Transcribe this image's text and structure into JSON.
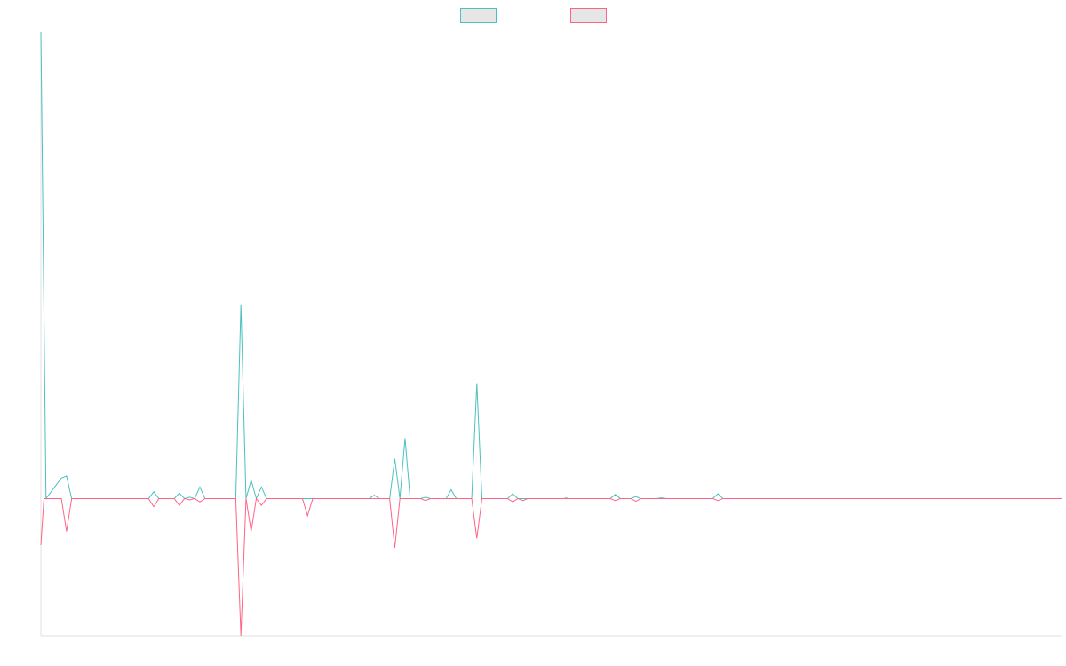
{
  "chart_data": {
    "type": "line",
    "title": "",
    "xlabel": "",
    "ylabel": "",
    "grid": false,
    "legend": {
      "placement": "top-center",
      "entries": [
        {
          "label": "",
          "color": "#4bc0c0"
        },
        {
          "label": "",
          "color": "#ff6384"
        }
      ]
    },
    "x_count": 200,
    "ylim": [
      -200,
      680
    ],
    "series": [
      {
        "color": "#4bc0c0",
        "fill": "#e6e6e6",
        "points": [
          [
            0,
            680
          ],
          [
            1,
            0
          ],
          [
            4,
            30
          ],
          [
            5,
            33
          ],
          [
            6,
            0
          ],
          [
            21,
            0
          ],
          [
            22,
            10
          ],
          [
            23,
            0
          ],
          [
            26,
            0
          ],
          [
            27,
            8
          ],
          [
            28,
            0
          ],
          [
            29,
            2
          ],
          [
            30,
            0
          ],
          [
            31,
            17
          ],
          [
            32,
            0
          ],
          [
            38,
            0
          ],
          [
            39,
            283
          ],
          [
            40,
            0
          ],
          [
            41,
            27
          ],
          [
            42,
            0
          ],
          [
            43,
            17
          ],
          [
            44,
            0
          ],
          [
            64,
            0
          ],
          [
            65,
            5
          ],
          [
            66,
            0
          ],
          [
            68,
            0
          ],
          [
            69,
            58
          ],
          [
            70,
            0
          ],
          [
            71,
            88
          ],
          [
            72,
            0
          ],
          [
            74,
            0
          ],
          [
            75,
            2
          ],
          [
            76,
            0
          ],
          [
            79,
            0
          ],
          [
            80,
            13
          ],
          [
            81,
            0
          ],
          [
            84,
            0
          ],
          [
            85,
            168
          ],
          [
            86,
            0
          ],
          [
            91,
            0
          ],
          [
            92,
            7
          ],
          [
            93,
            0
          ],
          [
            94,
            0
          ],
          [
            102,
            0
          ],
          [
            102.4,
            1
          ],
          [
            102.8,
            0
          ],
          [
            111,
            0
          ],
          [
            112,
            6
          ],
          [
            113,
            0
          ],
          [
            115,
            0
          ],
          [
            116,
            3
          ],
          [
            117,
            0
          ],
          [
            120,
            0
          ],
          [
            121,
            1
          ],
          [
            122,
            0
          ],
          [
            131,
            0
          ],
          [
            132,
            7
          ],
          [
            133,
            0
          ],
          [
            199,
            0
          ]
        ]
      },
      {
        "color": "#ff6384",
        "fill": "#e6e6e6",
        "points": [
          [
            0,
            -68
          ],
          [
            0.6,
            0
          ],
          [
            4,
            0
          ],
          [
            5,
            -48
          ],
          [
            6,
            0
          ],
          [
            21,
            0
          ],
          [
            22,
            -12
          ],
          [
            23,
            0
          ],
          [
            26,
            0
          ],
          [
            27,
            -10
          ],
          [
            28,
            0
          ],
          [
            29,
            -2
          ],
          [
            30,
            0
          ],
          [
            31,
            -5
          ],
          [
            32,
            0
          ],
          [
            38,
            0
          ],
          [
            39,
            -200
          ],
          [
            40,
            0
          ],
          [
            41,
            -48
          ],
          [
            42,
            0
          ],
          [
            43,
            -10
          ],
          [
            44,
            0
          ],
          [
            51,
            0
          ],
          [
            52,
            -25
          ],
          [
            53,
            0
          ],
          [
            68,
            0
          ],
          [
            69,
            -72
          ],
          [
            70,
            0
          ],
          [
            74,
            0
          ],
          [
            75,
            -3
          ],
          [
            76,
            0
          ],
          [
            84,
            0
          ],
          [
            85,
            -58
          ],
          [
            86,
            0
          ],
          [
            91,
            0
          ],
          [
            92,
            -5
          ],
          [
            93,
            0
          ],
          [
            94,
            -3
          ],
          [
            95,
            0
          ],
          [
            111,
            0
          ],
          [
            112,
            -3
          ],
          [
            113,
            0
          ],
          [
            115,
            0
          ],
          [
            116,
            -4
          ],
          [
            117,
            0
          ],
          [
            131,
            0
          ],
          [
            132,
            -3
          ],
          [
            133,
            0
          ],
          [
            199,
            0
          ]
        ]
      }
    ]
  }
}
